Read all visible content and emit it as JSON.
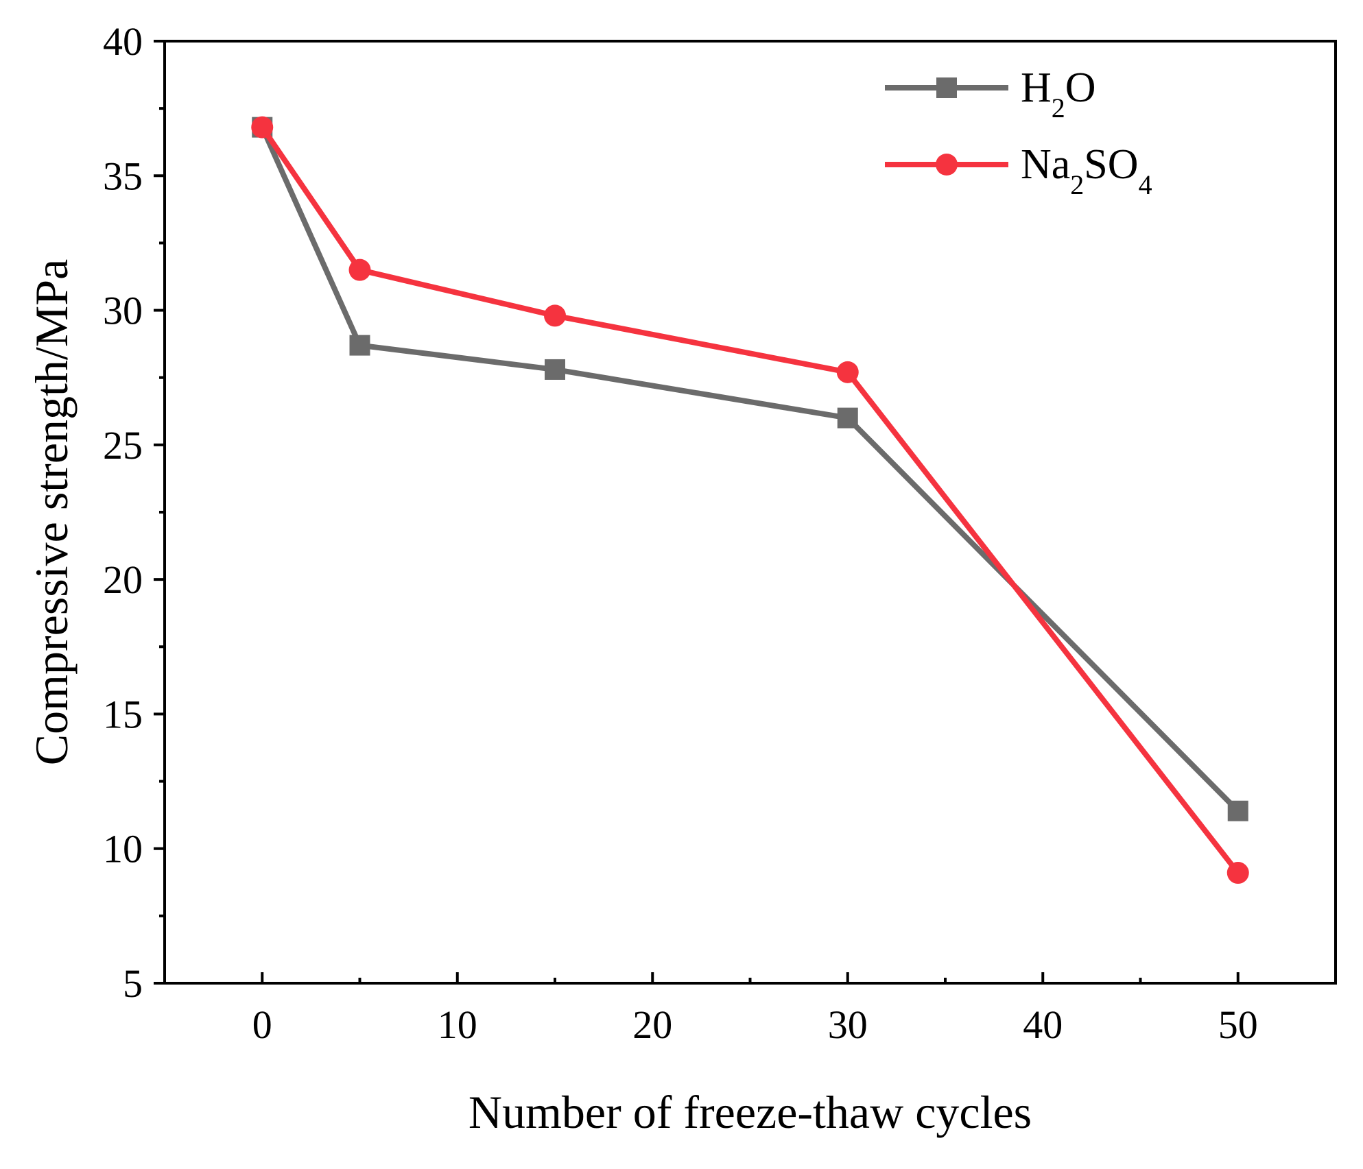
{
  "chart_data": {
    "type": "line",
    "xlabel": "Number of freeze-thaw cycles",
    "ylabel": "Compressive strength/MPa",
    "xlim": [
      -5,
      55
    ],
    "ylim": [
      5,
      40
    ],
    "x_ticks": [
      "0",
      "10",
      "20",
      "30",
      "40",
      "50"
    ],
    "x_tick_values": [
      0,
      10,
      20,
      30,
      40,
      50
    ],
    "x_minor_tick_values": [
      5,
      15,
      25,
      35,
      45
    ],
    "y_ticks": [
      "5",
      "10",
      "15",
      "20",
      "25",
      "30",
      "35",
      "40"
    ],
    "y_tick_values": [
      5,
      10,
      15,
      20,
      25,
      30,
      35,
      40
    ],
    "y_minor_tick_values": [
      7.5,
      12.5,
      17.5,
      22.5,
      27.5,
      32.5,
      37.5
    ],
    "legend_position": "top-right",
    "grid": false,
    "series": [
      {
        "name": "H2O",
        "name_main": "H",
        "name_sub": "2",
        "name_tail": "O",
        "marker": "square",
        "color": "#6b6b6b",
        "x": [
          0,
          5,
          15,
          30,
          50
        ],
        "y": [
          36.8,
          28.7,
          27.8,
          26.0,
          11.4
        ]
      },
      {
        "name": "Na2SO4",
        "name_main": "Na",
        "name_sub": "2",
        "name_tail": "SO",
        "name_sub2": "4",
        "marker": "circle",
        "color": "#f5333f",
        "x": [
          0,
          5,
          15,
          30,
          50
        ],
        "y": [
          36.8,
          31.5,
          29.8,
          27.7,
          9.1
        ]
      }
    ]
  }
}
